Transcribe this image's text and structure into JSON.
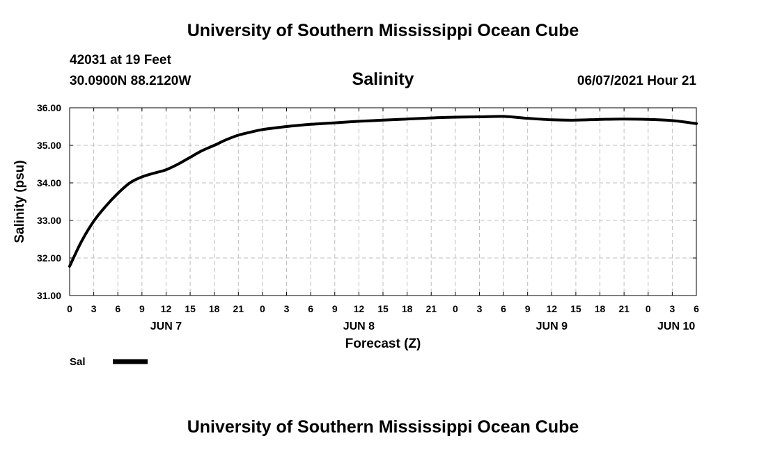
{
  "header": {
    "title": "University of Southern Mississippi Ocean Cube",
    "station": "42031 at 19 Feet",
    "coords": "30.0900N  88.2120W",
    "datetime": "06/07/2021 Hour 21"
  },
  "footer": {
    "title": "University of Southern Mississippi Ocean Cube"
  },
  "colors": {
    "line": "#000000",
    "grid": "#bfbfbf",
    "axis": "#000000"
  },
  "chart_data": {
    "type": "line",
    "title": "Salinity",
    "xlabel": "Forecast (Z)",
    "ylabel": "Salinity (psu)",
    "xlim": [
      0,
      78
    ],
    "ylim": [
      31.0,
      36.0
    ],
    "yticks": [
      "31.00",
      "32.00",
      "33.00",
      "34.00",
      "35.00",
      "36.00"
    ],
    "ytick_values": [
      31,
      32,
      33,
      34,
      35,
      36
    ],
    "xtick_hours": [
      0,
      3,
      6,
      9,
      12,
      15,
      18,
      21,
      24,
      27,
      30,
      33,
      36,
      39,
      42,
      45,
      48,
      51,
      54,
      57,
      60,
      63,
      66,
      69,
      72,
      75,
      78
    ],
    "xtick_labels": [
      "0",
      "3",
      "6",
      "9",
      "12",
      "15",
      "18",
      "21",
      "0",
      "3",
      "6",
      "9",
      "12",
      "15",
      "18",
      "21",
      "0",
      "3",
      "6",
      "9",
      "12",
      "15",
      "18",
      "21",
      "0",
      "3",
      "6"
    ],
    "date_labels": [
      {
        "label": "JUN 7",
        "hour": 12
      },
      {
        "label": "JUN 8",
        "hour": 36
      },
      {
        "label": "JUN 9",
        "hour": 60
      },
      {
        "label": "JUN 10",
        "hour": 75.5
      }
    ],
    "legend": "Sal",
    "legend_position": "bottom-left",
    "grid": true,
    "series": [
      {
        "name": "Sal",
        "x": [
          0,
          1.5,
          3,
          4.5,
          6,
          7.5,
          9,
          10.5,
          12,
          13.5,
          15,
          16.5,
          18,
          19.5,
          21,
          22.5,
          24,
          27,
          30,
          33,
          36,
          39,
          42,
          45,
          48,
          51,
          54,
          57,
          60,
          63,
          66,
          69,
          72,
          75,
          78
        ],
        "y": [
          31.78,
          32.45,
          32.98,
          33.38,
          33.72,
          34.0,
          34.16,
          34.26,
          34.35,
          34.5,
          34.68,
          34.86,
          35.0,
          35.15,
          35.27,
          35.35,
          35.42,
          35.5,
          35.56,
          35.6,
          35.64,
          35.67,
          35.7,
          35.73,
          35.75,
          35.76,
          35.77,
          35.72,
          35.68,
          35.67,
          35.69,
          35.7,
          35.69,
          35.66,
          35.58
        ]
      }
    ]
  }
}
